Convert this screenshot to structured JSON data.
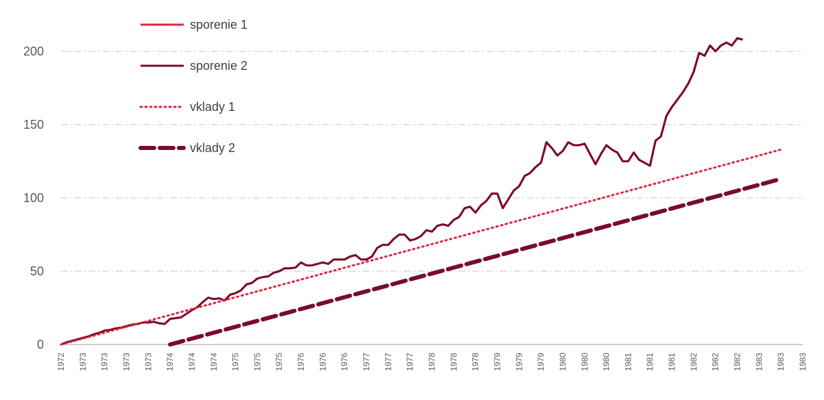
{
  "chart_data": {
    "type": "line",
    "title": "",
    "xlabel": "",
    "ylabel": "",
    "ylim": [
      0,
      220
    ],
    "yticks": [
      0,
      50,
      100,
      150,
      200
    ],
    "grid": "horizontal dash-dot",
    "legend_position": "top-left",
    "x_tick_labels": [
      "1972",
      "1973",
      "1973",
      "1973",
      "1973",
      "1974",
      "1974",
      "1974",
      "1975",
      "1975",
      "1975",
      "1976",
      "1976",
      "1976",
      "1977",
      "1977",
      "1977",
      "1978",
      "1978",
      "1978",
      "1979",
      "1979",
      "1979",
      "1980",
      "1980",
      "1980",
      "1981",
      "1981",
      "1981",
      "1982",
      "1982",
      "1982",
      "1983",
      "1983",
      "1983"
    ],
    "series": [
      {
        "name": "sporenie 1",
        "color": "#e0243a",
        "style": "solid",
        "x_start": 0,
        "step": 0.25,
        "values": [
          0,
          1.5,
          2.5,
          3.5,
          4.5,
          5.5,
          7,
          8,
          9.5,
          10,
          11,
          11.5,
          12.5,
          13.5,
          14,
          15,
          15,
          15.5,
          14.5,
          14,
          17.5,
          18,
          18.5,
          21,
          23.5,
          25.5,
          29,
          32,
          31,
          31.5,
          30,
          34,
          35,
          37,
          41,
          42,
          45,
          46,
          46.5,
          49,
          50,
          52,
          52,
          52.5,
          56,
          54,
          54,
          55,
          56,
          55,
          58,
          58,
          58,
          60,
          61,
          58,
          58,
          60,
          66,
          68,
          68,
          72,
          75,
          75,
          71,
          72,
          74,
          78,
          77,
          81,
          82,
          81,
          85,
          87,
          93,
          94,
          90,
          95,
          98,
          103,
          103,
          93,
          99,
          105,
          108,
          115,
          117,
          121,
          124,
          138,
          134,
          129,
          132,
          138,
          136,
          136,
          137,
          130,
          123,
          130,
          136,
          133,
          131,
          125,
          125,
          131,
          126,
          124,
          122,
          139,
          142,
          156,
          162,
          167,
          172,
          178,
          186,
          199,
          197,
          204,
          200,
          204,
          206,
          204,
          209,
          208
        ]
      },
      {
        "name": "sporenie 2",
        "color": "#7a0a2e",
        "style": "solid",
        "x_start": 0,
        "step": 0.25,
        "values": [
          0,
          1.5,
          2.5,
          3.5,
          4.5,
          5.5,
          7,
          8,
          9.5,
          10,
          11,
          11.5,
          12.5,
          13.5,
          14,
          15,
          15,
          15.5,
          14.5,
          14,
          17.5,
          18,
          18.5,
          21,
          23.5,
          25.5,
          29,
          32,
          31,
          31.5,
          30,
          34,
          35,
          37,
          41,
          42,
          45,
          46,
          46.5,
          49,
          50,
          52,
          52,
          52.5,
          56,
          54,
          54,
          55,
          56,
          55,
          58,
          58,
          58,
          60,
          61,
          58,
          58,
          60,
          66,
          68,
          68,
          72,
          75,
          75,
          71,
          72,
          74,
          78,
          77,
          81,
          82,
          81,
          85,
          87,
          93,
          94,
          90,
          95,
          98,
          103,
          103,
          93,
          99,
          105,
          108,
          115,
          117,
          121,
          124,
          138,
          134,
          129,
          132,
          138,
          136,
          136,
          137,
          130,
          123,
          130,
          136,
          133,
          131,
          125,
          125,
          131,
          126,
          124,
          122,
          139,
          142,
          156,
          162,
          167,
          172,
          178,
          186,
          199,
          197,
          204,
          200,
          204,
          206,
          204,
          209,
          208
        ]
      },
      {
        "name": "vklady 1",
        "color": "#e0243a",
        "style": "dotted",
        "x_start": 0,
        "x_end": 33,
        "y_start": 0,
        "y_end": 133
      },
      {
        "name": "vklady 2",
        "color": "#7a0a2e",
        "style": "dashed",
        "x_start": 5,
        "x_end": 33,
        "y_start": 0,
        "y_end": 113
      }
    ]
  }
}
